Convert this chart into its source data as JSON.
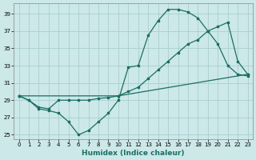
{
  "xlabel": "Humidex (Indice chaleur)",
  "background_color": "#cce8e8",
  "grid_color": "#aacece",
  "line_color": "#1a6e64",
  "xlim": [
    -0.5,
    23.5
  ],
  "ylim": [
    24.5,
    40.2
  ],
  "yticks": [
    25,
    27,
    29,
    31,
    33,
    35,
    37,
    39
  ],
  "xticks": [
    0,
    1,
    2,
    3,
    4,
    5,
    6,
    7,
    8,
    9,
    10,
    11,
    12,
    13,
    14,
    15,
    16,
    17,
    18,
    19,
    20,
    21,
    22,
    23
  ],
  "line1_x": [
    0,
    1,
    2,
    3,
    4,
    5,
    6,
    7,
    8,
    9,
    10,
    11,
    12,
    13,
    14,
    15,
    16,
    17,
    18,
    19,
    20,
    21,
    22,
    23
  ],
  "line1_y": [
    29.5,
    29.0,
    28.0,
    27.8,
    27.5,
    26.5,
    25.0,
    25.5,
    26.5,
    27.5,
    29.0,
    32.8,
    33.0,
    36.5,
    38.2,
    39.5,
    39.5,
    39.2,
    38.5,
    37.0,
    35.5,
    33.0,
    32.0,
    31.8
  ],
  "line2_x": [
    0,
    1,
    2,
    3,
    4,
    5,
    6,
    7,
    8,
    9,
    10,
    11,
    12,
    13,
    14,
    15,
    16,
    17,
    18,
    19,
    20,
    21,
    22,
    23
  ],
  "line2_y": [
    29.5,
    29.0,
    28.2,
    28.0,
    29.0,
    29.0,
    29.0,
    29.0,
    29.2,
    29.3,
    29.5,
    30.0,
    30.5,
    31.5,
    32.5,
    33.5,
    34.5,
    35.5,
    36.0,
    37.0,
    37.5,
    38.0,
    33.5,
    32.0
  ],
  "line3_x": [
    0,
    10,
    23
  ],
  "line3_y": [
    29.5,
    29.5,
    32.0
  ]
}
